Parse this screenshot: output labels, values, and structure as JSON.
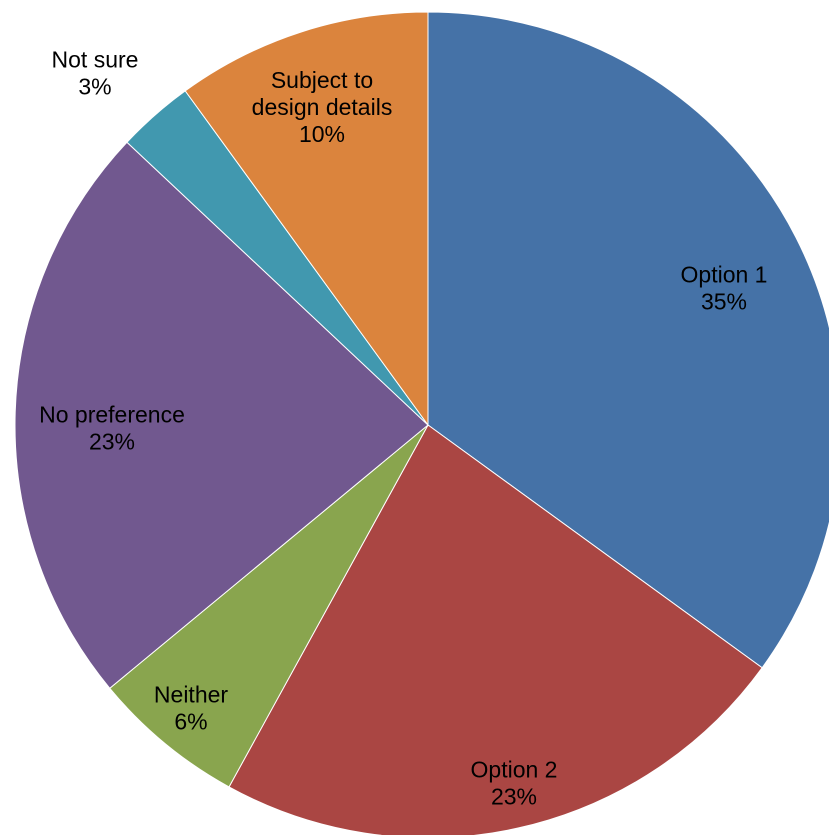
{
  "chart_data": {
    "type": "pie",
    "title": "",
    "slices": [
      {
        "label": "Option 1",
        "pct_text": "35%",
        "value": 35,
        "color": "#4572A7"
      },
      {
        "label": "Option 2",
        "pct_text": "23%",
        "value": 23,
        "color": "#AA4643"
      },
      {
        "label": "Neither",
        "pct_text": "6%",
        "value": 6,
        "color": "#89A54E"
      },
      {
        "label": "No preference",
        "pct_text": "23%",
        "value": 23,
        "color": "#71588F"
      },
      {
        "label": "Not sure",
        "pct_text": "3%",
        "value": 3,
        "color": "#4198AF"
      },
      {
        "label": "Subject to design details",
        "label_lines": [
          "Subject to",
          "design details"
        ],
        "pct_text": "10%",
        "value": 10,
        "color": "#DB843D"
      }
    ],
    "start": "12 o'clock",
    "direction": "clockwise"
  }
}
